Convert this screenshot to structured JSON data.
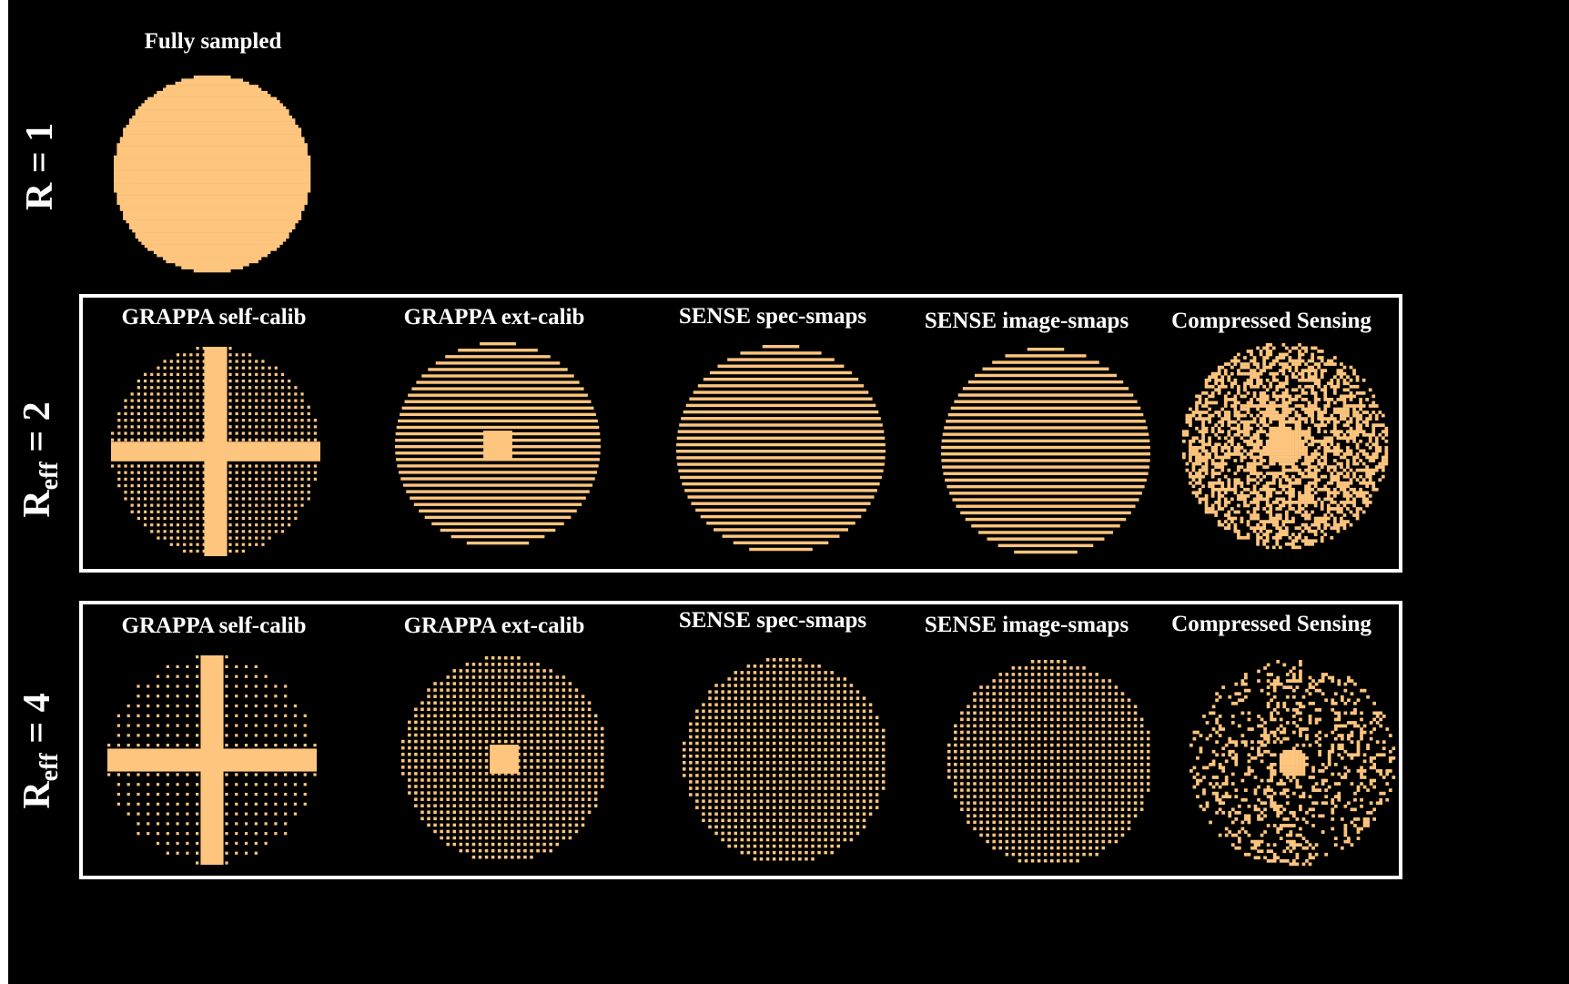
{
  "colors": {
    "background": "#000000",
    "sample": "#FDC57E",
    "frame": "#FFFFFF",
    "text": "#FFFFFF"
  },
  "rows": [
    {
      "label_main": "R = 1",
      "label_sub": ""
    },
    {
      "label_main": "R",
      "label_sub": "eff",
      "label_suffix": " = 2"
    },
    {
      "label_main": "R",
      "label_sub": "eff",
      "label_suffix": " = 4"
    }
  ],
  "row1": {
    "title": "Fully sampled"
  },
  "row2": {
    "titles": [
      "GRAPPA self-calib",
      "GRAPPA ext-calib",
      "SENSE spec-smaps",
      "SENSE image-smaps",
      "Compressed Sensing"
    ]
  },
  "row3": {
    "titles": [
      "GRAPPA self-calib",
      "GRAPPA ext-calib",
      "SENSE spec-smaps",
      "SENSE image-smaps",
      "Compressed Sensing"
    ]
  },
  "patterns": [
    {
      "id": "full",
      "kind": "full",
      "acceleration": 1
    },
    {
      "id": "r2-grappa-self",
      "kind": "grappa-self",
      "acceleration": 2
    },
    {
      "id": "r2-grappa-ext",
      "kind": "grappa-ext",
      "acceleration": 2
    },
    {
      "id": "r2-sense-spec",
      "kind": "lines",
      "acceleration": 2
    },
    {
      "id": "r2-sense-image",
      "kind": "lines",
      "acceleration": 2
    },
    {
      "id": "r2-cs",
      "kind": "cs",
      "acceleration": 2
    },
    {
      "id": "r4-grappa-self",
      "kind": "grappa-self",
      "acceleration": 4
    },
    {
      "id": "r4-grappa-ext",
      "kind": "grappa-ext",
      "acceleration": 4
    },
    {
      "id": "r4-sense-spec",
      "kind": "grid",
      "acceleration": 4
    },
    {
      "id": "r4-sense-image",
      "kind": "grid",
      "acceleration": 4
    },
    {
      "id": "r4-cs",
      "kind": "cs",
      "acceleration": 4
    }
  ]
}
